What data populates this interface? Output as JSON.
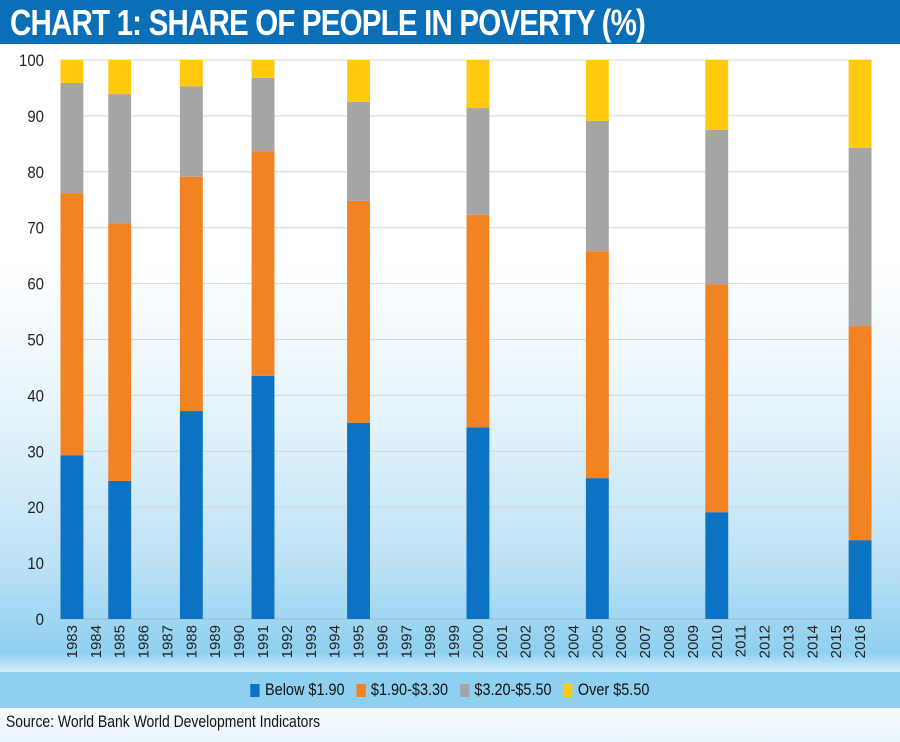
{
  "title": "CHART 1: SHARE OF PEOPLE IN POVERTY (%)",
  "source": "Source: World Bank World Development Indicators",
  "chart_data": {
    "type": "bar",
    "stacked": true,
    "title": "CHART 1: SHARE OF PEOPLE IN POVERTY (%)",
    "xlabel": "",
    "ylabel": "",
    "ylim": [
      0,
      100
    ],
    "yticks": [
      0,
      10,
      20,
      30,
      40,
      50,
      60,
      70,
      80,
      90,
      100
    ],
    "grid": true,
    "legend_position": "bottom",
    "categories": [
      "1983",
      "1984",
      "1985",
      "1986",
      "1987",
      "1988",
      "1989",
      "1990",
      "1991",
      "1992",
      "1993",
      "1994",
      "1995",
      "1996",
      "1997",
      "1998",
      "1999",
      "2000",
      "2001",
      "2002",
      "2003",
      "2004",
      "2005",
      "2006",
      "2007",
      "2008",
      "2009",
      "2010",
      "2011",
      "2012",
      "2013",
      "2014",
      "2015",
      "2016"
    ],
    "series": [
      {
        "name": "Below $1.90",
        "color": "#0b72c4",
        "values": [
          29.3,
          null,
          24.7,
          null,
          null,
          37.2,
          null,
          null,
          43.5,
          null,
          null,
          null,
          35.1,
          null,
          null,
          null,
          null,
          34.3,
          null,
          null,
          null,
          null,
          25.2,
          null,
          null,
          null,
          null,
          19.1,
          null,
          null,
          null,
          null,
          null,
          14.1
        ]
      },
      {
        "name": "$1.90-$3.30",
        "color": "#f28322",
        "values": [
          46.9,
          null,
          46.1,
          null,
          null,
          41.9,
          null,
          null,
          40.2,
          null,
          null,
          null,
          39.7,
          null,
          null,
          null,
          null,
          38.0,
          null,
          null,
          null,
          null,
          40.6,
          null,
          null,
          null,
          null,
          40.8,
          null,
          null,
          null,
          null,
          null,
          38.3
        ]
      },
      {
        "name": "$3.20-$5.50",
        "color": "#a5a5a5",
        "values": [
          19.7,
          null,
          23.1,
          null,
          null,
          16.2,
          null,
          null,
          13.1,
          null,
          null,
          null,
          17.7,
          null,
          null,
          null,
          null,
          19.1,
          null,
          null,
          null,
          null,
          23.3,
          null,
          null,
          null,
          null,
          27.6,
          null,
          null,
          null,
          null,
          null,
          31.9
        ]
      },
      {
        "name": "Over $5.50",
        "color": "#ffc90e",
        "values": [
          4.1,
          null,
          6.1,
          null,
          null,
          4.7,
          null,
          null,
          3.2,
          null,
          null,
          null,
          7.5,
          null,
          null,
          null,
          null,
          8.6,
          null,
          null,
          null,
          null,
          10.9,
          null,
          null,
          null,
          null,
          12.5,
          null,
          null,
          null,
          null,
          null,
          15.7
        ]
      }
    ]
  }
}
